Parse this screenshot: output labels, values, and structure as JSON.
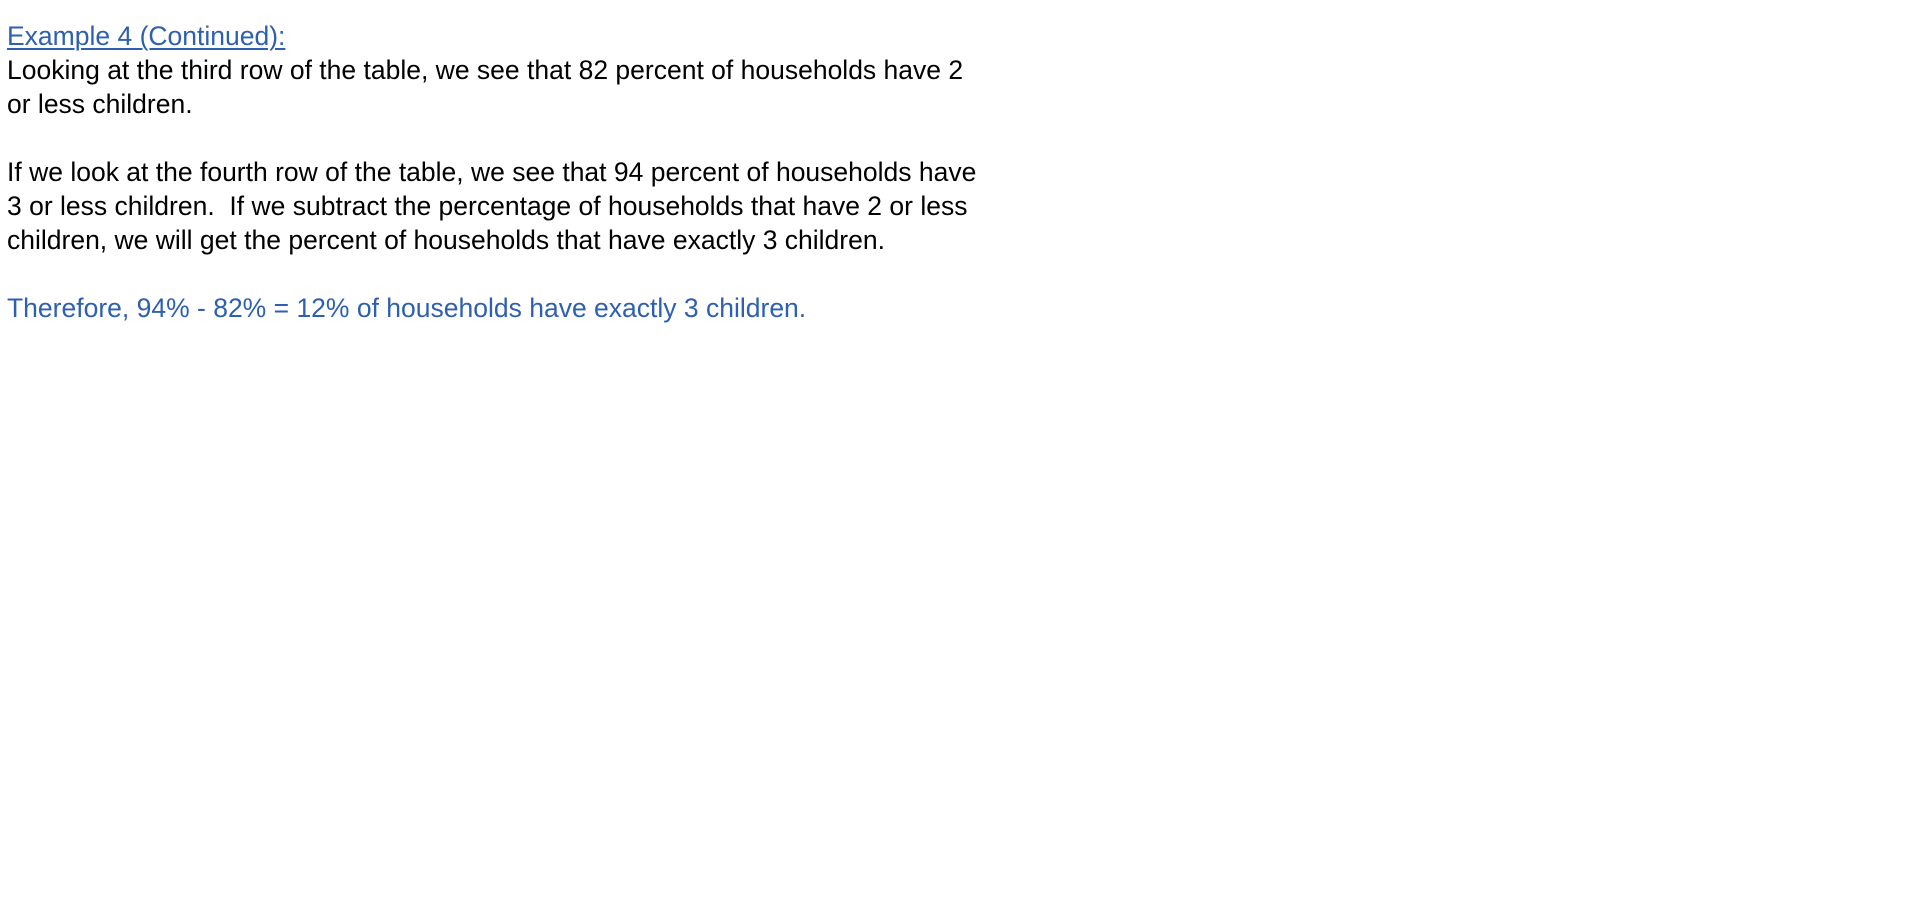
{
  "document": {
    "heading": "Example 4 (Continued):",
    "paragraph1": [
      "Looking at the third row of the table, we see that 82 percent of households have 2",
      "or less children."
    ],
    "paragraph2": [
      "If we look at the fourth row of the table, we see that 94 percent of households have",
      "3 or less children.  If we subtract the percentage of households that have 2 or less",
      "children, we will get the percent of households that have exactly 3 children."
    ],
    "conclusion": "Therefore, 94% - 82% = 12% of households have exactly 3 children.",
    "colors": {
      "accent": "#2e5fb0",
      "text": "#000000",
      "background": "#ffffff"
    }
  }
}
